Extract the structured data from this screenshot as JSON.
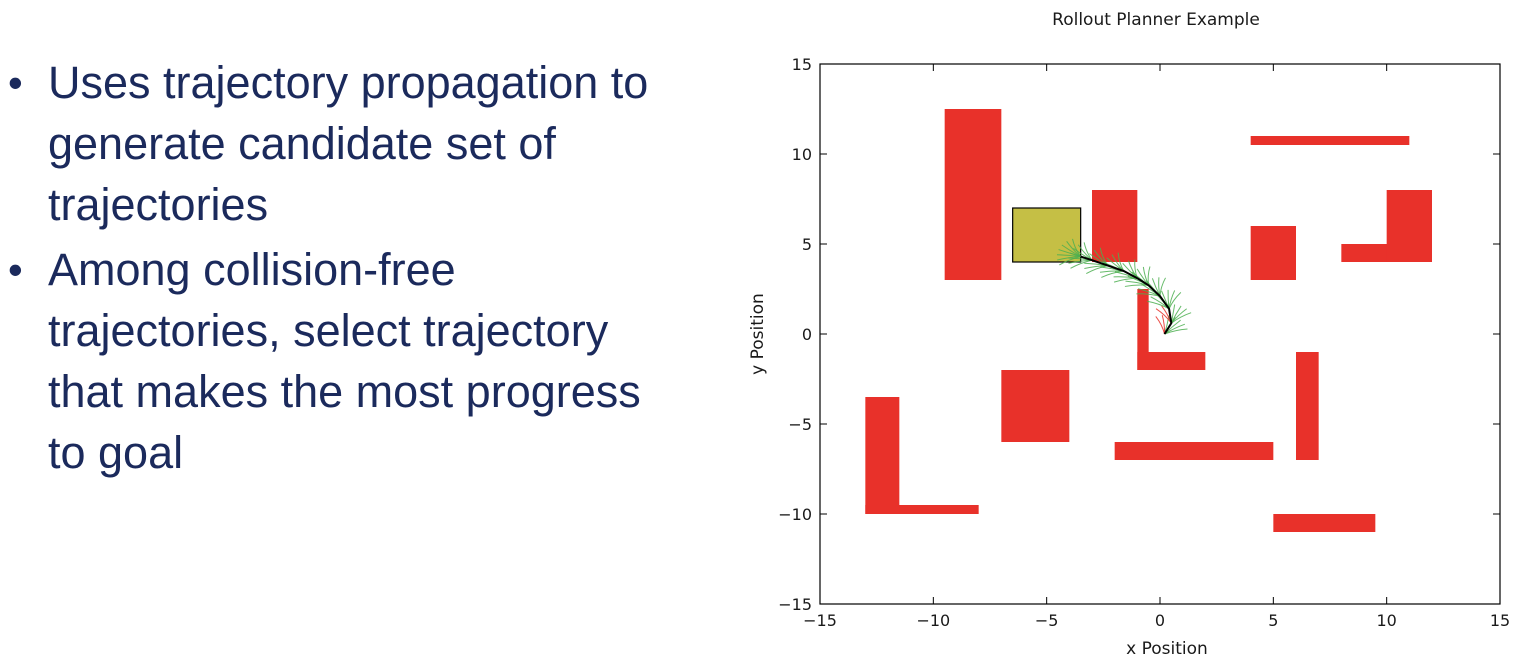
{
  "slide": {
    "bullets": [
      {
        "lines": [
          "Uses trajectory propagation to",
          "generate candidate set of",
          "trajectories"
        ]
      },
      {
        "lines": [
          "Among collision-free",
          "trajectories, select trajectory",
          "that makes the most progress",
          "to goal"
        ]
      }
    ]
  },
  "chart_data": {
    "type": "diagram-plot",
    "title": "Rollout Planner Example",
    "xlabel": "x Position",
    "ylabel": "y Position",
    "xlim": [
      -15,
      15
    ],
    "ylim": [
      -15,
      15
    ],
    "xticks": [
      -15,
      -10,
      -5,
      0,
      5,
      10,
      15
    ],
    "yticks": [
      -15,
      -10,
      -5,
      0,
      5,
      10,
      15
    ],
    "xtick_labels": [
      "−15",
      "−10",
      "−5",
      "0",
      "5",
      "10",
      "15"
    ],
    "ytick_labels": [
      "−15",
      "−10",
      "−5",
      "0",
      "5",
      "10",
      "15"
    ],
    "grid": false,
    "obstacle_color": "#e8312a",
    "goal_color": "#c5bf45",
    "path_color": "#000000",
    "candidate_color": "#4caf50",
    "collision_color": "#e8312a",
    "obstacles": [
      {
        "x0": -9.5,
        "y0": 3,
        "x1": -7,
        "y1": 12.5
      },
      {
        "x0": -3,
        "y0": 4,
        "x1": -1,
        "y1": 8
      },
      {
        "x0": 4,
        "y0": 10.5,
        "x1": 11,
        "y1": 11
      },
      {
        "x0": 4,
        "y0": 3,
        "x1": 6,
        "y1": 6
      },
      {
        "x0": 8,
        "y0": 4,
        "x1": 12,
        "y1": 5
      },
      {
        "x0": 10,
        "y0": 4,
        "x1": 12,
        "y1": 8
      },
      {
        "x0": -1,
        "y0": -2,
        "x1": -0.5,
        "y1": 2.5
      },
      {
        "x0": -1,
        "y0": -2,
        "x1": 2,
        "y1": -1
      },
      {
        "x0": -7,
        "y0": -6,
        "x1": -4,
        "y1": -2
      },
      {
        "x0": 6,
        "y0": -7,
        "x1": 7,
        "y1": -1
      },
      {
        "x0": -2,
        "y0": -7,
        "x1": 5,
        "y1": -6
      },
      {
        "x0": -13,
        "y0": -10,
        "x1": -11.5,
        "y1": -3.5
      },
      {
        "x0": -13,
        "y0": -10,
        "x1": -8,
        "y1": -9.5
      },
      {
        "x0": 5,
        "y0": -11,
        "x1": 9.5,
        "y1": -10
      }
    ],
    "goal_region": {
      "x0": -6.5,
      "y0": 4,
      "x1": -3.5,
      "y1": 7
    },
    "path": [
      [
        0.2,
        0.0
      ],
      [
        0.5,
        0.6
      ],
      [
        0.4,
        1.4
      ],
      [
        0.0,
        2.1
      ],
      [
        -0.5,
        2.7
      ],
      [
        -1.0,
        3.1
      ],
      [
        -1.6,
        3.5
      ],
      [
        -2.3,
        3.8
      ],
      [
        -3.0,
        4.1
      ],
      [
        -3.5,
        4.3
      ]
    ]
  }
}
